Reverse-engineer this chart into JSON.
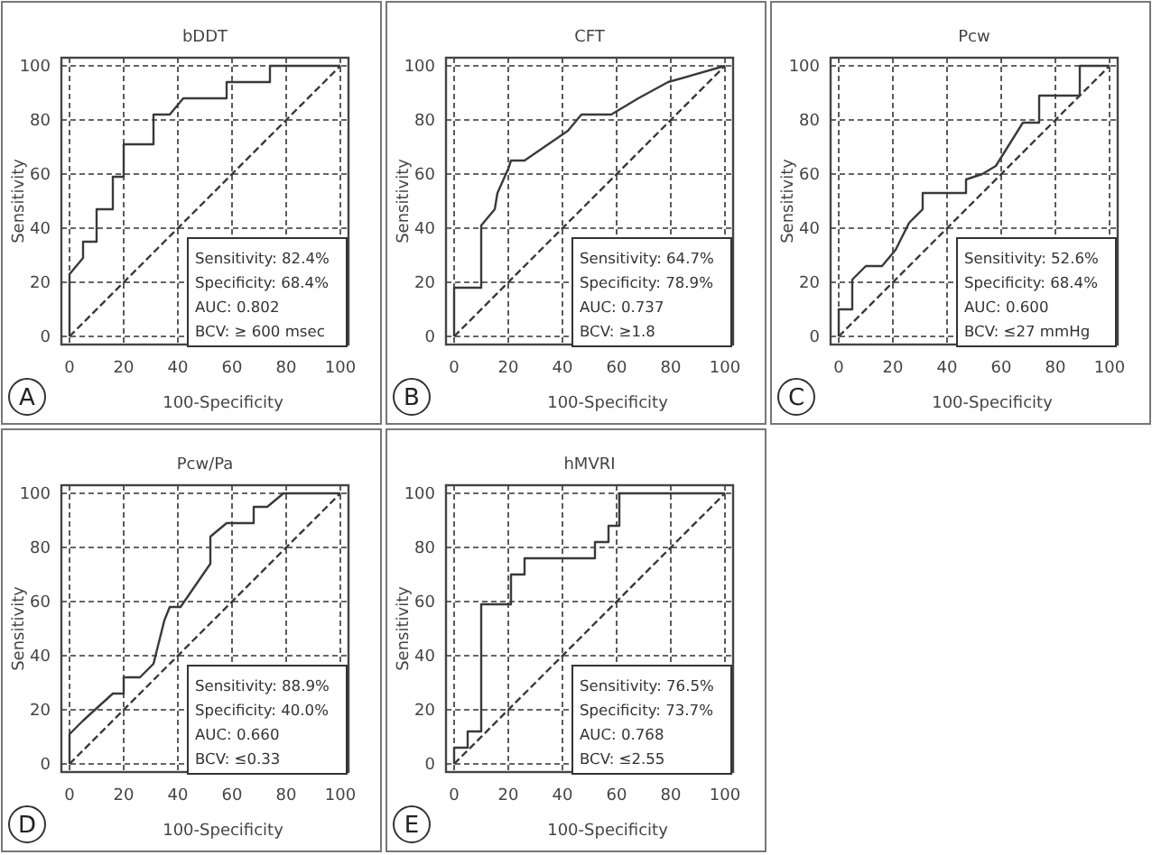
{
  "chart_data": [
    {
      "type": "line",
      "title": "bDDT",
      "xlabel": "100-Specificity",
      "ylabel": "Sensitivity",
      "xlim": [
        -3,
        103
      ],
      "ylim": [
        -3,
        103
      ],
      "xticks": [
        0,
        20,
        40,
        60,
        80,
        100
      ],
      "yticks": [
        0,
        20,
        40,
        60,
        80,
        100
      ],
      "grid": true,
      "annotations": [
        "A",
        "Sensitivity: 82.4%",
        "Specificity: 68.4%",
        "AUC: 0.802",
        "BCV: ≥ 600 msec"
      ],
      "series": [
        {
          "color": "#3a3a3a",
          "x": [
            0,
            0,
            5,
            5,
            10,
            10,
            16,
            16,
            20,
            20,
            31,
            31,
            37,
            42,
            58,
            58,
            74,
            74,
            100
          ],
          "values": [
            0,
            23,
            29,
            35,
            35,
            47,
            47,
            59,
            59,
            71,
            71,
            82,
            82,
            88,
            88,
            94,
            94,
            100,
            100
          ]
        },
        {
          "color": "#3a3a3a",
          "line_style": "dashed",
          "x": [
            0,
            100
          ],
          "values": [
            0,
            100
          ]
        }
      ]
    },
    {
      "type": "line",
      "title": "CFT",
      "xlabel": "100-Specificity",
      "ylabel": "Sensitivity",
      "xlim": [
        -3,
        103
      ],
      "ylim": [
        -3,
        103
      ],
      "xticks": [
        0,
        20,
        40,
        60,
        80,
        100
      ],
      "yticks": [
        0,
        20,
        40,
        60,
        80,
        100
      ],
      "grid": true,
      "annotations": [
        "B",
        "Sensitivity: 64.7%",
        "Specificity: 78.9%",
        "AUC: 0.737",
        "BCV: ≥1.8"
      ],
      "series": [
        {
          "color": "#3a3a3a",
          "x": [
            0,
            0,
            10,
            10,
            15,
            16,
            20,
            21,
            26,
            42,
            47,
            58,
            68,
            79,
            100
          ],
          "values": [
            0,
            18,
            18,
            41,
            47,
            53,
            62,
            65,
            65,
            76,
            82,
            82,
            88,
            94,
            100
          ]
        },
        {
          "color": "#3a3a3a",
          "line_style": "dashed",
          "x": [
            0,
            100
          ],
          "values": [
            0,
            100
          ]
        }
      ]
    },
    {
      "type": "line",
      "title": "Pcw",
      "xlabel": "100-Specificity",
      "ylabel": "Sensitivity",
      "xlim": [
        -3,
        103
      ],
      "ylim": [
        -3,
        103
      ],
      "xticks": [
        0,
        20,
        40,
        60,
        80,
        100
      ],
      "yticks": [
        0,
        20,
        40,
        60,
        80,
        100
      ],
      "grid": true,
      "annotations": [
        "C",
        "Sensitivity: 52.6%",
        "Specificity: 68.4%",
        "AUC: 0.600",
        "BCV: ≤27 mmHg"
      ],
      "series": [
        {
          "color": "#3a3a3a",
          "x": [
            0,
            0,
            5,
            5,
            10,
            16,
            21,
            26,
            31,
            31,
            47,
            47,
            53,
            58,
            68,
            74,
            74,
            89,
            89,
            100
          ],
          "values": [
            0,
            10,
            10,
            21,
            26,
            26,
            32,
            42,
            47,
            53,
            53,
            58,
            60,
            63,
            79,
            79,
            89,
            89,
            100,
            100
          ]
        },
        {
          "color": "#3a3a3a",
          "line_style": "dashed",
          "x": [
            0,
            100
          ],
          "values": [
            0,
            100
          ]
        }
      ]
    },
    {
      "type": "line",
      "title": "Pcw/Pa",
      "xlabel": "100-Specificity",
      "ylabel": "Sensitivity",
      "xlim": [
        -3,
        103
      ],
      "ylim": [
        -3,
        103
      ],
      "xticks": [
        0,
        20,
        40,
        60,
        80,
        100
      ],
      "yticks": [
        0,
        20,
        40,
        60,
        80,
        100
      ],
      "grid": true,
      "annotations": [
        "D",
        "Sensitivity: 88.9%",
        "Specificity: 40.0%",
        "AUC: 0.660",
        "BCV: ≤0.33"
      ],
      "series": [
        {
          "color": "#3a3a3a",
          "x": [
            0,
            0,
            5,
            16,
            20,
            20,
            26,
            31,
            35,
            37,
            41,
            52,
            52,
            58,
            68,
            68,
            73,
            79,
            100
          ],
          "values": [
            0,
            11,
            16,
            26,
            26,
            32,
            32,
            37,
            53,
            58,
            58,
            74,
            84,
            89,
            89,
            95,
            95,
            100,
            100
          ]
        },
        {
          "color": "#3a3a3a",
          "line_style": "dashed",
          "x": [
            0,
            100
          ],
          "values": [
            0,
            100
          ]
        }
      ]
    },
    {
      "type": "line",
      "title": "hMVRI",
      "xlabel": "100-Specificity",
      "ylabel": "Sensitivity",
      "xlim": [
        -3,
        103
      ],
      "ylim": [
        -3,
        103
      ],
      "xticks": [
        0,
        20,
        40,
        60,
        80,
        100
      ],
      "yticks": [
        0,
        20,
        40,
        60,
        80,
        100
      ],
      "grid": true,
      "annotations": [
        "E",
        "Sensitivity: 76.5%",
        "Specificity: 73.7%",
        "AUC: 0.768",
        "BCV: ≤2.55"
      ],
      "series": [
        {
          "color": "#3a3a3a",
          "x": [
            0,
            0,
            5,
            5,
            10,
            10,
            21,
            21,
            26,
            26,
            52,
            52,
            57,
            57,
            61,
            61,
            100
          ],
          "values": [
            0,
            6,
            6,
            12,
            12,
            59,
            59,
            70,
            70,
            76,
            76,
            82,
            82,
            88,
            88,
            100,
            100
          ]
        },
        {
          "color": "#3a3a3a",
          "line_style": "dashed",
          "x": [
            0,
            100
          ],
          "values": [
            0,
            100
          ]
        }
      ]
    }
  ]
}
